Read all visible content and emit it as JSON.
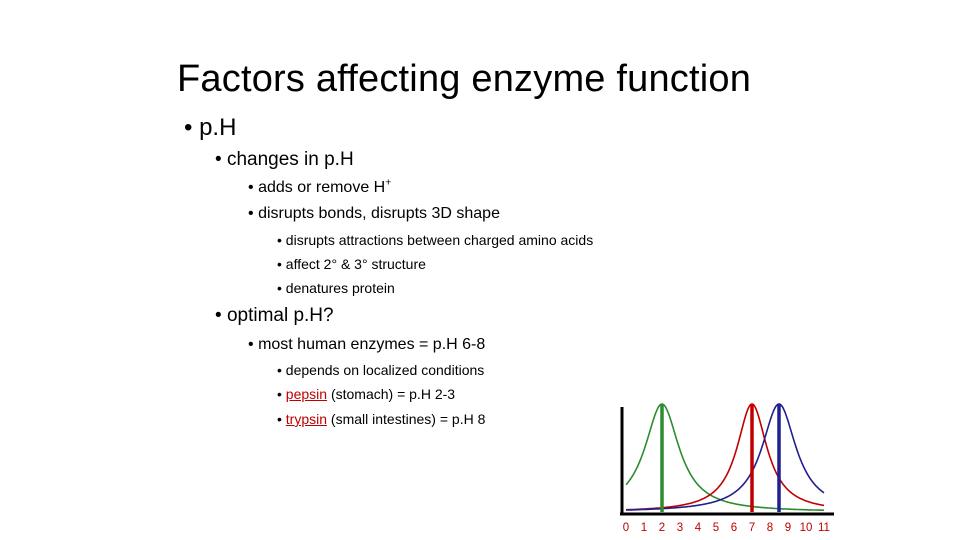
{
  "slide": {
    "title": "Factors affecting enzyme function",
    "bullet_ph": "p.H",
    "changes": "changes in p.H",
    "adds_pre": "adds or remove H",
    "adds_sup": "+",
    "disrupts_bonds": "disrupts bonds, disrupts 3D shape",
    "attractions": "disrupts attractions between charged amino acids",
    "affect": "affect 2° & 3° structure",
    "denatures": "denatures protein",
    "optimal": "optimal p.H?",
    "most_human": "most human enzymes = p.H 6-8",
    "localized": "depends on localized conditions",
    "pepsin_name": "pepsin",
    "pepsin_rest": " (stomach) = p.H 2-3",
    "trypsin_name": "trypsin",
    "trypsin_rest": " (small intestines) = p.H 8"
  },
  "colors": {
    "text": "#000000",
    "link_red": "#c00000",
    "green": "#2e8b2e",
    "red": "#c00000",
    "blue": "#1f1f8f"
  },
  "chart_data": {
    "type": "line",
    "xlabel": "",
    "ylabel": "",
    "xlim": [
      0,
      11
    ],
    "x_ticks": [
      "0",
      "1",
      "2",
      "3",
      "4",
      "5",
      "6",
      "7",
      "8",
      "9",
      "10",
      "11"
    ],
    "series": [
      {
        "color": "#2e8b2e",
        "peak_x": 2,
        "width": 1.6
      },
      {
        "color": "#c00000",
        "peak_x": 7,
        "width": 1.4
      },
      {
        "color": "#1f1f8f",
        "peak_x": 8.5,
        "width": 1.6
      }
    ]
  }
}
